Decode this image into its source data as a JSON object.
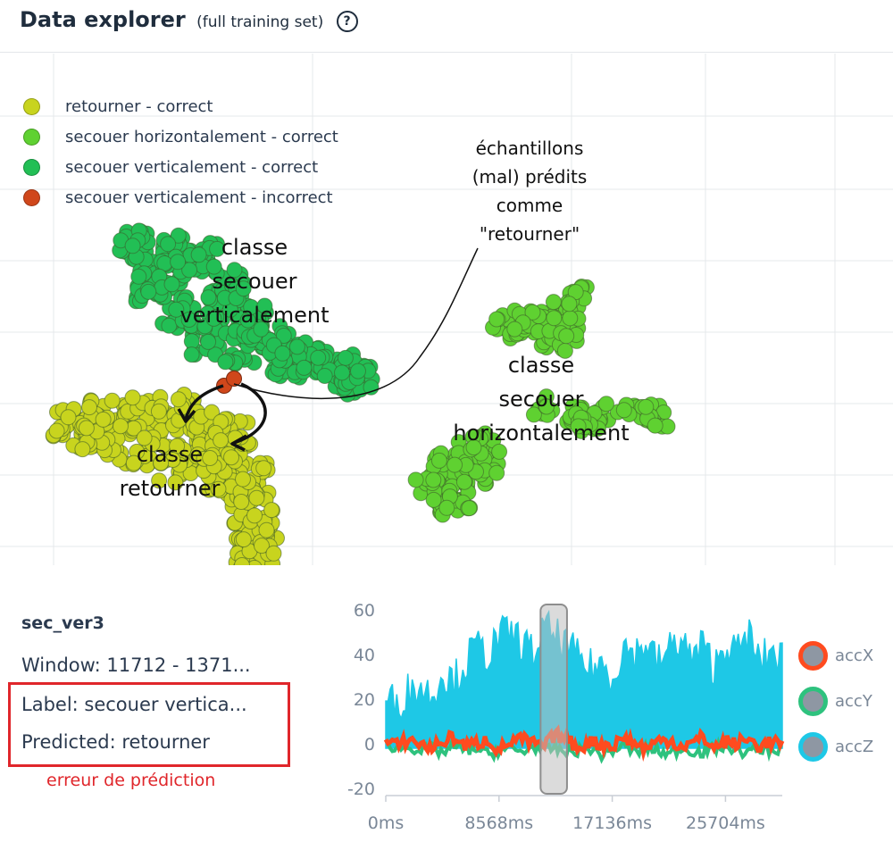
{
  "header": {
    "title": "Data explorer",
    "subtitle": "(full training set)",
    "help_icon": "question-circle-icon"
  },
  "legend": [
    {
      "label": "retourner - correct",
      "color": "#c8d41e"
    },
    {
      "label": "secouer horizontalement - correct",
      "color": "#5fd131"
    },
    {
      "label": "secouer verticalement - correct",
      "color": "#22bf55"
    },
    {
      "label": "secouer verticalement - incorrect",
      "color": "#d0471b"
    }
  ],
  "annotations": {
    "class_vertical": [
      "classe",
      "secouer",
      "verticalement"
    ],
    "class_horizontal": [
      "classe",
      "secouer",
      "horizontalement"
    ],
    "class_retourner": [
      "classe",
      "retourner"
    ],
    "mispredicted": [
      "échantillons",
      "(mal) prédits",
      "comme",
      "\"retourner\""
    ]
  },
  "sample": {
    "name": "sec_ver3",
    "window": "Window: 11712 - 1371...",
    "label": "Label: secouer vertica...",
    "predicted": "Predicted: retourner",
    "error_note": "erreur de prédiction"
  },
  "chart_data": {
    "type": "area",
    "x_unit": "ms",
    "x_ticks": [
      "0ms",
      "8568ms",
      "17136ms",
      "25704ms"
    ],
    "xlim": [
      0,
      30000
    ],
    "y_ticks": [
      60,
      40,
      20,
      0,
      -20
    ],
    "ylim": [
      -20,
      60
    ],
    "window_highlight_ms": [
      11712,
      13712
    ],
    "series": [
      {
        "name": "accX",
        "color": "#ff4b1f",
        "values": [
          1,
          -1,
          2,
          0,
          -2,
          1,
          3,
          -1,
          0,
          2,
          -3,
          1,
          2,
          0,
          -1,
          4,
          2,
          -2,
          1,
          0,
          -1,
          3,
          0,
          -2,
          1,
          2,
          -1,
          0,
          3,
          -2,
          1,
          0,
          2,
          -1,
          1,
          0
        ]
      },
      {
        "name": "accY",
        "color": "#2ec27e",
        "values": [
          0,
          -2,
          -1,
          -3,
          -2,
          -4,
          -1,
          -3,
          -2,
          -5,
          -3,
          -2,
          -4,
          -1,
          -3,
          -2,
          -4,
          -3,
          -2,
          -5,
          -3,
          -1,
          -4,
          -2,
          -3,
          -5,
          -2,
          -3,
          -4,
          -2,
          -1,
          -3,
          -4,
          -2,
          -3,
          -2
        ]
      },
      {
        "name": "accZ",
        "color": "#1ec8e6",
        "values": [
          20,
          18,
          24,
          26,
          22,
          32,
          28,
          36,
          44,
          40,
          48,
          50,
          46,
          40,
          52,
          48,
          44,
          38,
          34,
          36,
          30,
          44,
          40,
          46,
          36,
          42,
          48,
          38,
          44,
          34,
          46,
          40,
          50,
          36,
          42,
          38
        ]
      }
    ]
  }
}
